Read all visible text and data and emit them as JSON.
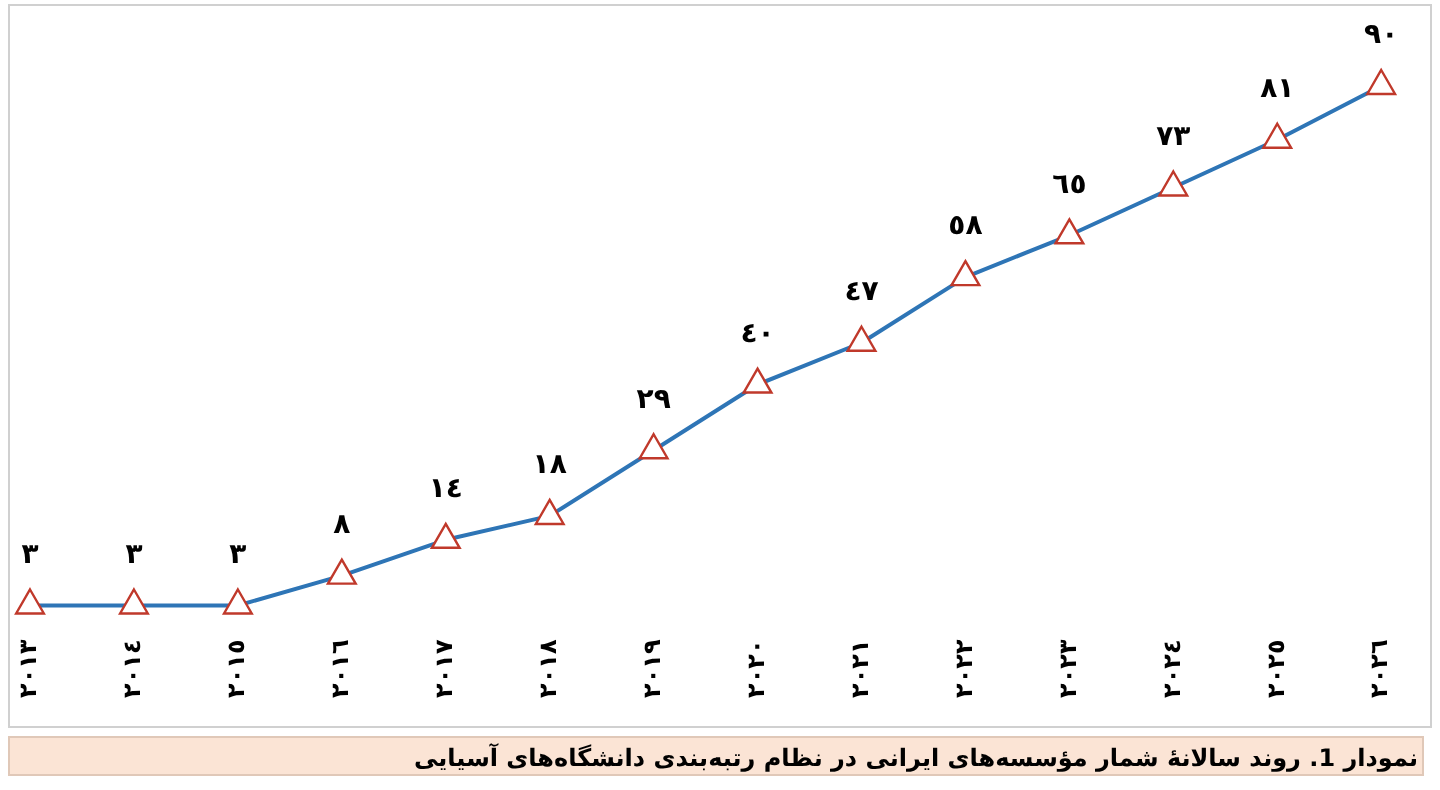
{
  "chart_data": {
    "type": "line",
    "title": "نمودار 1. روند سالانهٔ شمار مؤسسه‌های ایرانی در نظام رتبه‌بندی دانشگاه‌های آسیایی",
    "categories": [
      "٢٠١٣",
      "٢٠١٤",
      "٢٠١٥",
      "٢٠١٦",
      "٢٠١٧",
      "٢٠١٨",
      "٢٠١٩",
      "٢٠٢٠",
      "٢٠٢١",
      "٢٠٢٢",
      "٢٠٢٣",
      "٢٠٢٤",
      "٢٠٢٥",
      "٢٠٢٦"
    ],
    "series": [
      {
        "color": "#2e75b6",
        "values": [
          3,
          3,
          3,
          8,
          14,
          18,
          29,
          40,
          47,
          58,
          65,
          73,
          81,
          90
        ],
        "value_labels": [
          "٣",
          "٣",
          "٣",
          "٨",
          "١٤",
          "١٨",
          "٢٩",
          "٤٠",
          "٤٧",
          "٥٨",
          "٦٥",
          "٧٣",
          "٨١",
          "٩٠"
        ]
      }
    ],
    "marker": "triangle",
    "grid": false,
    "legend": false
  }
}
